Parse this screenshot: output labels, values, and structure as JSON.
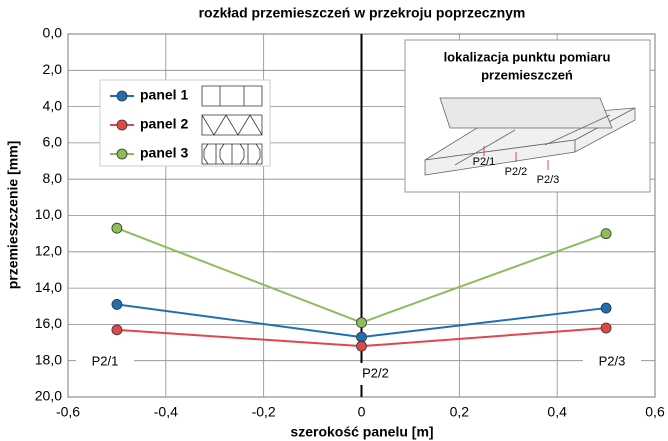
{
  "chart_data": {
    "type": "line",
    "title": "rozkład przemieszczeń w przekroju poprzecznym",
    "xlabel": "szerokość panelu [m]",
    "ylabel": "przemieszczenie [mm]",
    "x": [
      -0.5,
      0,
      0.5
    ],
    "series": [
      {
        "name": "panel 1",
        "color": "#1f6fb5",
        "values": [
          14.9,
          16.7,
          15.1
        ]
      },
      {
        "name": "panel 2",
        "color": "#e0474c",
        "values": [
          16.3,
          17.2,
          16.2
        ]
      },
      {
        "name": "panel 3",
        "color": "#8fbc5a",
        "values": [
          10.7,
          15.9,
          11.0
        ]
      }
    ],
    "xlim": [
      -0.6,
      0.6
    ],
    "xticks": [
      {
        "value": -0.6,
        "label": "-0,6"
      },
      {
        "value": -0.4,
        "label": "-0,4"
      },
      {
        "value": -0.2,
        "label": "-0,2"
      },
      0,
      {
        "value": 0.2,
        "label": "0,2"
      },
      {
        "value": 0.4,
        "label": "0,4"
      },
      {
        "value": 0.6,
        "label": "0,6"
      }
    ],
    "ylim": [
      0,
      20
    ],
    "y_inverted": true,
    "yticks": [
      {
        "value": 0,
        "label": "0,0"
      },
      {
        "value": 2,
        "label": "2,0"
      },
      {
        "value": 4,
        "label": "4,0"
      },
      {
        "value": 6,
        "label": "6,0"
      },
      {
        "value": 8,
        "label": "8,0"
      },
      {
        "value": 10,
        "label": "10,0"
      },
      {
        "value": 12,
        "label": "12,0"
      },
      {
        "value": 14,
        "label": "14,0"
      },
      {
        "value": 16,
        "label": "16,0"
      },
      {
        "value": 18,
        "label": "18,0"
      },
      {
        "value": 20,
        "label": "20,0"
      }
    ],
    "grid": true,
    "legend": "upper left",
    "annotations": [
      "P2/1",
      "P2/2",
      "P2/3"
    ],
    "inset": {
      "title_lines": [
        "lokalizacja punktu pomiaru",
        "przemieszczeń"
      ],
      "labels": [
        "P2/1",
        "P2/2",
        "P2/3"
      ]
    }
  }
}
